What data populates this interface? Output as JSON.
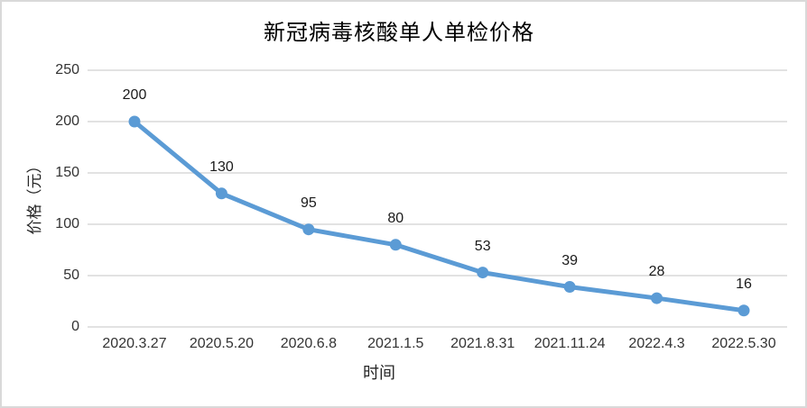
{
  "chart_data": {
    "type": "line",
    "title": "新冠病毒核酸单人单检价格",
    "xlabel": "时间",
    "ylabel": "价格（元）",
    "categories": [
      "2020.3.27",
      "2020.5.20",
      "2020.6.8",
      "2021.1.5",
      "2021.8.31",
      "2021.11.24",
      "2022.4.3",
      "2022.5.30"
    ],
    "values": [
      200,
      130,
      95,
      80,
      53,
      39,
      28,
      16
    ],
    "ylim": [
      0,
      250
    ],
    "yticks": [
      0,
      50,
      100,
      150,
      200,
      250
    ],
    "grid": true,
    "legend_position": "none",
    "data_labels": "above",
    "colors": {
      "series": "#5b9bd5",
      "gridline": "#d9d9d9",
      "chart_border": "#d9d9d9",
      "tick_text": "#333333",
      "title_text": "#000000",
      "background": "#ffffff"
    }
  }
}
